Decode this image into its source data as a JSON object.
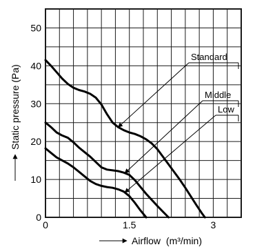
{
  "chart_data": {
    "type": "line",
    "xlabel": "Airflow",
    "xlabel_unit": "(m³/min)",
    "ylabel": "Static pressure (Pa)",
    "xlim": [
      0,
      3.5
    ],
    "ylim": [
      0,
      55
    ],
    "x_ticks": [
      0,
      1.5,
      3
    ],
    "x_tick_labels": [
      "0",
      "1.5",
      "3"
    ],
    "y_ticks": [
      0,
      10,
      20,
      30,
      40,
      50
    ],
    "y_tick_labels": [
      "0",
      "10",
      "20",
      "30",
      "40",
      "50"
    ],
    "grid": true,
    "series": [
      {
        "name": "Standard",
        "x": [
          0,
          0.1,
          0.2,
          0.3,
          0.4,
          0.5,
          0.6,
          0.7,
          0.8,
          0.9,
          1.0,
          1.1,
          1.2,
          1.3,
          1.4,
          1.5,
          1.6,
          1.7,
          1.8,
          1.9,
          2.0,
          2.1,
          2.2,
          2.3,
          2.4,
          2.5,
          2.6,
          2.7,
          2.8,
          2.85
        ],
        "y": [
          41.5,
          40.0,
          38.3,
          36.6,
          35.2,
          34.2,
          33.6,
          33.2,
          32.6,
          31.6,
          29.8,
          27.2,
          25.0,
          23.8,
          23.0,
          22.4,
          22.0,
          21.4,
          20.6,
          19.5,
          18.0,
          16.0,
          14.0,
          12.0,
          10.0,
          7.8,
          5.5,
          3.2,
          1.0,
          0
        ]
      },
      {
        "name": "Middle",
        "x": [
          0,
          0.1,
          0.2,
          0.3,
          0.4,
          0.5,
          0.6,
          0.7,
          0.8,
          0.9,
          1.0,
          1.1,
          1.2,
          1.3,
          1.4,
          1.5,
          1.6,
          1.7,
          1.8,
          1.9,
          2.0,
          2.1,
          2.2
        ],
        "y": [
          25.0,
          23.8,
          22.4,
          21.6,
          21.0,
          19.8,
          18.4,
          17.2,
          16.0,
          14.6,
          13.2,
          12.6,
          12.4,
          12.2,
          11.8,
          11.2,
          9.8,
          8.0,
          6.2,
          4.6,
          3.0,
          1.5,
          0
        ]
      },
      {
        "name": "Low",
        "x": [
          0,
          0.1,
          0.2,
          0.3,
          0.4,
          0.5,
          0.6,
          0.7,
          0.8,
          0.9,
          1.0,
          1.1,
          1.2,
          1.3,
          1.4,
          1.5,
          1.6,
          1.7,
          1.8
        ],
        "y": [
          18.2,
          17.0,
          15.8,
          15.0,
          14.2,
          13.2,
          12.0,
          10.8,
          9.6,
          8.8,
          8.3,
          8.0,
          7.8,
          7.4,
          6.8,
          5.6,
          3.8,
          1.8,
          0
        ]
      }
    ],
    "annotations": [
      {
        "text": "Standard",
        "points_to_series": "Standard",
        "at_x": 1.3
      },
      {
        "text": "Middle",
        "points_to_series": "Middle",
        "at_x": 1.42
      },
      {
        "text": "Low",
        "points_to_series": "Low",
        "at_x": 1.42
      }
    ]
  }
}
